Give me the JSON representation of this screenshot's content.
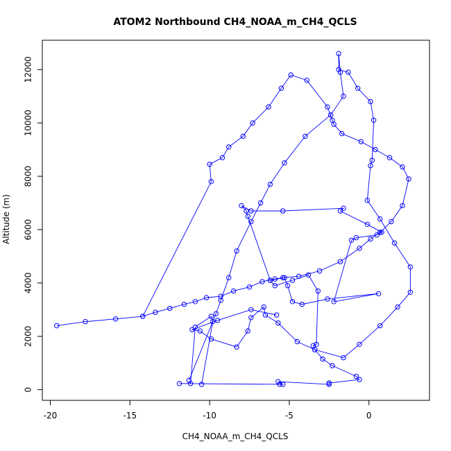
{
  "chart_data": {
    "type": "line",
    "title": "ATOM2 Northbound CH4_NOAA_m_CH4_QCLS",
    "xlabel": "CH4_NOAA_m_CH4_QCLS",
    "ylabel": "Altitude (m)",
    "xlim": [
      -20.5,
      3.8
    ],
    "ylim": [
      -400,
      13100
    ],
    "x_ticks": [
      -20,
      -15,
      -10,
      -5,
      0
    ],
    "y_ticks": [
      0,
      2000,
      4000,
      6000,
      8000,
      10000,
      12000
    ],
    "grid": false,
    "legend": "none",
    "series_color": "#0000ff",
    "series": [
      {
        "points": [
          [
            -10.5,
            200
          ],
          [
            -9.8,
            2550
          ],
          [
            -9.9,
            2750
          ],
          [
            -10.9,
            2350
          ],
          [
            -11.2,
            230
          ],
          [
            -11.9,
            230
          ],
          [
            -5.6,
            200
          ],
          [
            -5.4,
            200
          ],
          [
            -5.7,
            300
          ],
          [
            -2.5,
            200
          ],
          [
            -2.5,
            250
          ],
          [
            -0.6,
            380
          ],
          [
            -0.8,
            500
          ],
          [
            -2.3,
            900
          ],
          [
            -2.9,
            1150
          ],
          [
            -3.4,
            1500
          ],
          [
            -3.5,
            1650
          ],
          [
            -3.3,
            1700
          ],
          [
            -3.2,
            3700
          ],
          [
            -3.8,
            4300
          ],
          [
            -4.8,
            4100
          ],
          [
            -5.9,
            3900
          ],
          [
            -6.2,
            4100
          ],
          [
            -5.3,
            4200
          ],
          [
            -5.1,
            3900
          ],
          [
            -4.8,
            3300
          ],
          [
            -4.2,
            3200
          ],
          [
            -2.6,
            3400
          ],
          [
            0.6,
            3600
          ],
          [
            -2.2,
            3300
          ],
          [
            -1.1,
            5600
          ],
          [
            -0.8,
            5700
          ],
          [
            0.5,
            5800
          ],
          [
            0.8,
            5900
          ],
          [
            -0.1,
            6200
          ],
          [
            -1.8,
            6700
          ],
          [
            -1.6,
            6800
          ],
          [
            -5.4,
            6700
          ],
          [
            -7.4,
            6700
          ],
          [
            -8.0,
            6900
          ],
          [
            -7.7,
            6700
          ],
          [
            -7.6,
            6500
          ],
          [
            -6.2,
            4100
          ]
        ]
      },
      {
        "points": [
          [
            -19.6,
            2400
          ],
          [
            -17.8,
            2550
          ],
          [
            -15.9,
            2650
          ],
          [
            -14.2,
            2750
          ],
          [
            -13.4,
            2900
          ],
          [
            -12.5,
            3050
          ],
          [
            -11.6,
            3200
          ],
          [
            -10.9,
            3300
          ],
          [
            -10.2,
            3450
          ],
          [
            -9.3,
            3500
          ],
          [
            -8.5,
            3700
          ],
          [
            -7.5,
            3850
          ],
          [
            -6.7,
            4050
          ],
          [
            -5.9,
            4150
          ],
          [
            -5.4,
            4200
          ],
          [
            -4.4,
            4250
          ],
          [
            -3.1,
            4450
          ],
          [
            -1.8,
            4800
          ],
          [
            -0.6,
            5300
          ],
          [
            0.1,
            5650
          ],
          [
            0.7,
            5900
          ],
          [
            1.4,
            6300
          ],
          [
            2.1,
            6900
          ],
          [
            2.5,
            7900
          ],
          [
            2.1,
            8350
          ],
          [
            1.3,
            8700
          ],
          [
            0.4,
            9000
          ],
          [
            -0.5,
            9300
          ],
          [
            -1.7,
            9600
          ],
          [
            -2.2,
            9950
          ],
          [
            -2.3,
            10100
          ],
          [
            -2.6,
            10600
          ],
          [
            -3.9,
            11600
          ],
          [
            -4.9,
            11800
          ],
          [
            -5.5,
            11300
          ],
          [
            -6.3,
            10600
          ],
          [
            -7.3,
            10000
          ],
          [
            -7.9,
            9500
          ],
          [
            -8.8,
            9100
          ],
          [
            -9.2,
            8700
          ],
          [
            -10.0,
            8450
          ],
          [
            -9.9,
            7800
          ],
          [
            -14.2,
            2750
          ]
        ]
      },
      {
        "points": [
          [
            -11.3,
            350
          ],
          [
            -9.6,
            2850
          ],
          [
            -9.3,
            3350
          ],
          [
            -8.8,
            4200
          ],
          [
            -8.3,
            5200
          ],
          [
            -7.4,
            6300
          ],
          [
            -6.8,
            7000
          ],
          [
            -6.2,
            7700
          ],
          [
            -5.3,
            8500
          ],
          [
            -4.0,
            9500
          ],
          [
            -2.4,
            10300
          ],
          [
            -1.6,
            11000
          ],
          [
            -1.8,
            11900
          ],
          [
            -1.9,
            12600
          ],
          [
            -1.9,
            12000
          ],
          [
            -1.3,
            11900
          ],
          [
            -0.7,
            11300
          ],
          [
            0.1,
            10800
          ],
          [
            0.3,
            10100
          ],
          [
            0.2,
            8600
          ],
          [
            0.1,
            8400
          ],
          [
            -0.1,
            7100
          ],
          [
            0.7,
            6400
          ],
          [
            1.6,
            5500
          ],
          [
            2.6,
            4600
          ],
          [
            2.6,
            3650
          ],
          [
            1.8,
            3100
          ],
          [
            0.7,
            2400
          ],
          [
            -0.6,
            1700
          ],
          [
            -1.6,
            1200
          ],
          [
            -3.4,
            1500
          ],
          [
            -4.5,
            1800
          ],
          [
            -5.7,
            2500
          ],
          [
            -6.5,
            2800
          ],
          [
            -6.6,
            3100
          ],
          [
            -7.4,
            2700
          ],
          [
            -7.6,
            2200
          ],
          [
            -8.3,
            1600
          ],
          [
            -9.9,
            1900
          ],
          [
            -10.6,
            2200
          ],
          [
            -11.1,
            2250
          ],
          [
            -9.5,
            2600
          ],
          [
            -7.4,
            3000
          ],
          [
            -5.8,
            2800
          ]
        ]
      }
    ]
  }
}
